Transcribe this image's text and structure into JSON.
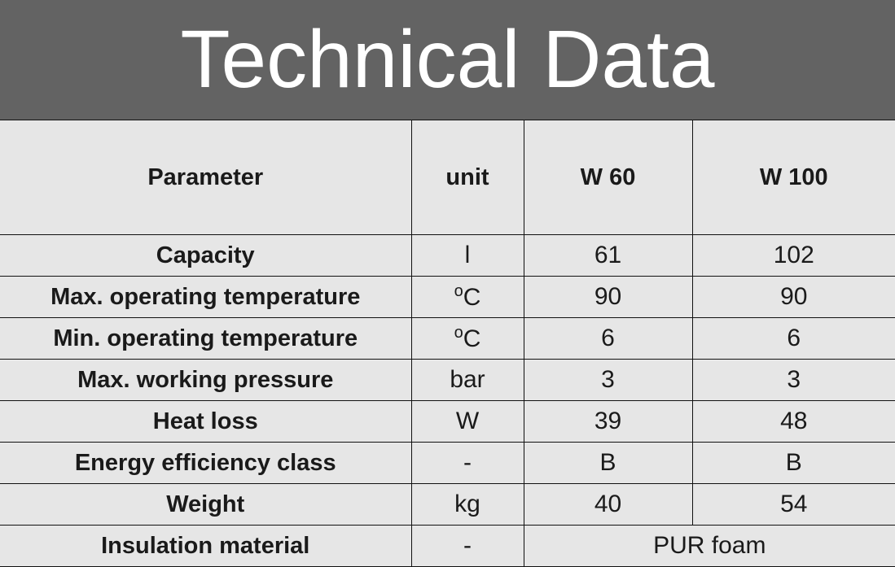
{
  "title": "Technical Data",
  "headers": [
    "Parameter",
    "unit",
    "W 60",
    "W 100"
  ],
  "rows": [
    {
      "param": "Capacity",
      "unit": "l",
      "w60": "61",
      "w100": "102"
    },
    {
      "param": "Max. operating temperature",
      "unit_sup": "o",
      "unit": "C",
      "w60": "90",
      "w100": "90"
    },
    {
      "param": "Min. operating temperature",
      "unit_sup": "o",
      "unit": "C",
      "w60": "6",
      "w100": "6"
    },
    {
      "param": "Max. working pressure",
      "unit": "bar",
      "w60": "3",
      "w100": "3"
    },
    {
      "param": "Heat loss",
      "unit": "W",
      "w60": "39",
      "w100": "48"
    },
    {
      "param": "Energy efficiency class",
      "unit": "-",
      "w60": "B",
      "w100": "B"
    },
    {
      "param": "Weight",
      "unit": "kg",
      "w60": "40",
      "w100": "54"
    },
    {
      "param": "Insulation material",
      "unit": "-",
      "both": "PUR foam"
    }
  ]
}
